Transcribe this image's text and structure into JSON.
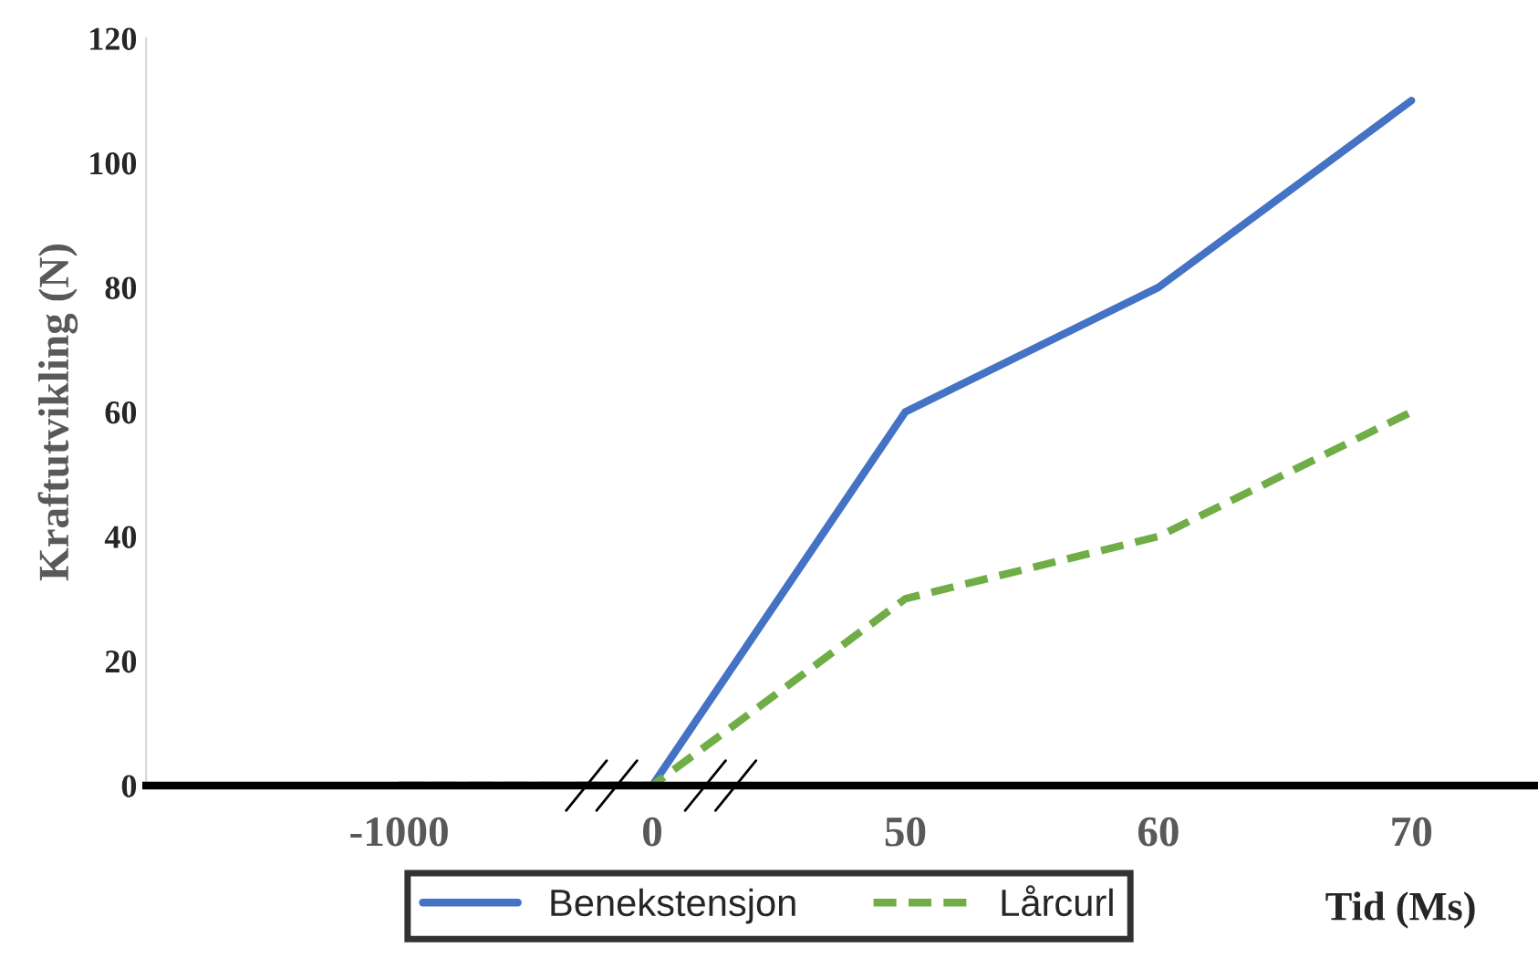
{
  "chart_data": {
    "type": "line",
    "categories": [
      "-1000",
      "0",
      "50",
      "60",
      "70"
    ],
    "xlabel": "Tid (Ms)",
    "ylabel": "Kraftutvikling (N)",
    "series": [
      {
        "name": "Benekstensjon",
        "color": "#4472c4",
        "values": [
          0,
          0,
          60,
          80,
          110
        ],
        "line_style": "solid"
      },
      {
        "name": "Lårcurl",
        "color": "#70ad47",
        "values": [
          0,
          0,
          30,
          40,
          60
        ],
        "line_style": "dashed"
      }
    ],
    "ylim": [
      0,
      120
    ],
    "yticks": [
      0,
      20,
      40,
      60,
      80,
      100,
      120
    ],
    "grid": false,
    "legend": "bottom",
    "marker": "none"
  }
}
